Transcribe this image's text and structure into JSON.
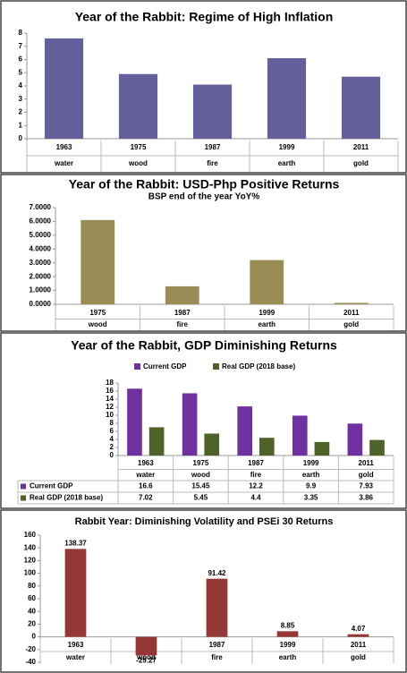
{
  "chart_data": [
    {
      "type": "bar",
      "title": "Year of the Rabbit: Regime of High Inflation",
      "categories": [
        "1963",
        "1975",
        "1987",
        "1999",
        "2011"
      ],
      "subcategories": [
        "water",
        "wood",
        "fire",
        "earth",
        "gold"
      ],
      "values": [
        7.6,
        4.9,
        4.1,
        6.1,
        4.7
      ],
      "color": "#64609c",
      "ylim": [
        0,
        8
      ],
      "yticks": [
        0,
        1,
        2,
        3,
        4,
        5,
        6,
        7,
        8
      ],
      "grid": false
    },
    {
      "type": "bar",
      "title": "Year of the Rabbit: USD-Php Positive Returns",
      "subtitle": "BSP end of the year YoY%",
      "categories": [
        "1975",
        "1987",
        "1999",
        "2011"
      ],
      "subcategories": [
        "wood",
        "fire",
        "earth",
        "gold"
      ],
      "values": [
        6.1,
        1.3,
        3.2,
        0.1
      ],
      "color": "#9a8c55",
      "ylim": [
        0,
        7
      ],
      "yticks": [
        {
          "value": 0,
          "label": "0.0000"
        },
        {
          "value": 1,
          "label": "1.0000"
        },
        {
          "value": 2,
          "label": "2.0000"
        },
        {
          "value": 3,
          "label": "3.0000"
        },
        {
          "value": 4,
          "label": "4.0000"
        },
        {
          "value": 5,
          "label": "5.0000"
        },
        {
          "value": 6,
          "label": "6.0000"
        },
        {
          "value": 7,
          "label": "7.0000"
        }
      ],
      "grid": false
    },
    {
      "type": "bar",
      "title": "Year of the Rabbit, GDP Diminishing Returns",
      "categories": [
        "1963",
        "1975",
        "1987",
        "1999",
        "2011"
      ],
      "subcategories": [
        "water",
        "wood",
        "fire",
        "earth",
        "gold"
      ],
      "series": [
        {
          "name": "Current GDP",
          "color": "#7030a0",
          "values": [
            16.6,
            15.45,
            12.2,
            9.9,
            7.93
          ]
        },
        {
          "name": "Real GDP (2018 base)",
          "color": "#4f6228",
          "values": [
            7.02,
            5.45,
            4.4,
            3.35,
            3.86
          ]
        }
      ],
      "ylim": [
        0,
        18
      ],
      "yticks": [
        0,
        2,
        4,
        6,
        8,
        10,
        12,
        14,
        16,
        18
      ],
      "grid": false,
      "legend": "top",
      "data_table": true
    },
    {
      "type": "bar",
      "title": "Rabbit Year: Diminishing Volatility and PSEi 30 Returns",
      "categories": [
        "1963",
        "1975",
        "1987",
        "1999",
        "2011"
      ],
      "subcategories": [
        "water",
        "wood",
        "fire",
        "earth",
        "gold"
      ],
      "values": [
        138.37,
        -29.27,
        91.42,
        8.85,
        4.07
      ],
      "color": "#953735",
      "ylim": [
        -40,
        160
      ],
      "yticks": [
        -40,
        -20,
        0,
        20,
        40,
        60,
        80,
        100,
        120,
        140,
        160
      ],
      "grid": false,
      "data_labels": true
    }
  ]
}
